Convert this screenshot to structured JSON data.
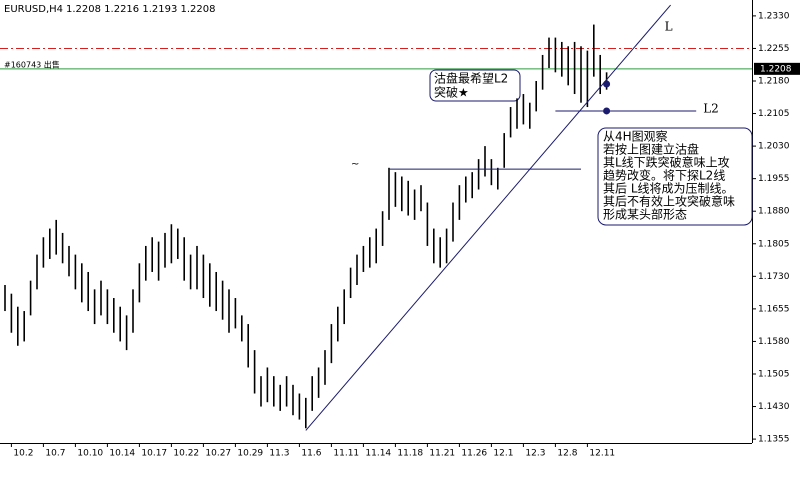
{
  "chart_data": {
    "type": "high_low",
    "header": {
      "symbol": "EURUSD,H4",
      "ohlc": "1.2208 1.2216 1.2193 1.2208"
    },
    "categories": [
      null,
      "10.2",
      null,
      null,
      null,
      null,
      "10.7",
      null,
      null,
      null,
      null,
      "10.10",
      null,
      null,
      null,
      null,
      "10.14",
      null,
      null,
      null,
      null,
      "10.17",
      null,
      null,
      null,
      null,
      "10.22",
      null,
      null,
      null,
      null,
      "10.27",
      null,
      null,
      null,
      null,
      "10.29",
      null,
      null,
      null,
      null,
      "11.3",
      null,
      null,
      null,
      null,
      "11.6",
      null,
      null,
      null,
      null,
      "11.11",
      null,
      null,
      null,
      null,
      "11.14",
      null,
      null,
      null,
      null,
      "11.18",
      null,
      null,
      null,
      null,
      "11.21",
      null,
      null,
      null,
      null,
      "11.26",
      null,
      null,
      null,
      null,
      "12.1",
      null,
      null,
      null,
      null,
      "12.3",
      null,
      null,
      null,
      null,
      "12.8",
      null,
      null,
      null,
      null,
      "12.11",
      null,
      null,
      null
    ],
    "high": [
      1.171,
      1.169,
      1.166,
      1.165,
      1.172,
      1.178,
      1.182,
      1.184,
      1.186,
      1.183,
      1.18,
      1.178,
      1.176,
      1.174,
      1.17,
      1.172,
      1.17,
      1.168,
      1.166,
      1.164,
      1.17,
      1.176,
      1.18,
      1.182,
      1.181,
      1.183,
      1.185,
      1.184,
      1.182,
      1.178,
      1.18,
      1.178,
      1.176,
      1.174,
      1.172,
      1.17,
      1.168,
      1.164,
      1.162,
      1.156,
      1.15,
      1.152,
      1.15,
      1.148,
      1.15,
      1.148,
      1.146,
      1.145,
      1.15,
      1.152,
      1.156,
      1.162,
      1.166,
      1.17,
      1.175,
      1.178,
      1.18,
      1.182,
      1.184,
      1.188,
      1.198,
      1.197,
      1.196,
      1.195,
      1.193,
      1.194,
      1.19,
      1.184,
      1.182,
      1.184,
      1.19,
      1.194,
      1.196,
      1.197,
      1.2,
      1.203,
      1.2,
      1.198,
      1.206,
      1.212,
      1.214,
      1.215,
      1.213,
      1.218,
      1.224,
      1.228,
      1.228,
      1.227,
      1.226,
      1.227,
      1.226,
      1.225,
      1.231,
      1.224,
      1.22
    ],
    "low": [
      1.165,
      1.16,
      1.157,
      1.158,
      1.164,
      1.17,
      1.175,
      1.177,
      1.178,
      1.176,
      1.173,
      1.17,
      1.167,
      1.165,
      1.162,
      1.164,
      1.162,
      1.16,
      1.158,
      1.156,
      1.16,
      1.167,
      1.172,
      1.174,
      1.172,
      1.175,
      1.176,
      1.177,
      1.172,
      1.17,
      1.17,
      1.168,
      1.166,
      1.165,
      1.163,
      1.16,
      1.161,
      1.158,
      1.152,
      1.146,
      1.143,
      1.144,
      1.143,
      1.142,
      1.143,
      1.141,
      1.14,
      1.138,
      1.142,
      1.145,
      1.148,
      1.153,
      1.158,
      1.162,
      1.168,
      1.171,
      1.174,
      1.175,
      1.176,
      1.18,
      1.186,
      1.189,
      1.188,
      1.187,
      1.186,
      1.188,
      1.18,
      1.176,
      1.175,
      1.176,
      1.181,
      1.186,
      1.19,
      1.191,
      1.193,
      1.196,
      1.194,
      1.193,
      1.198,
      1.205,
      1.207,
      1.208,
      1.207,
      1.211,
      1.216,
      1.221,
      1.22,
      1.219,
      1.217,
      1.215,
      1.213,
      1.212,
      1.219,
      1.215,
      1.216
    ],
    "color": "#000000",
    "ylim": [
      1.1346,
      1.2362
    ],
    "yticks": [
      {
        "value": 1.1355,
        "label": "1.1355"
      },
      {
        "value": 1.143,
        "label": "1.1430"
      },
      {
        "value": 1.1505,
        "label": "1.1505"
      },
      {
        "value": 1.158,
        "label": "1.1580"
      },
      {
        "value": 1.1655,
        "label": "1.1655"
      },
      {
        "value": 1.173,
        "label": "1.1730"
      },
      {
        "value": 1.1805,
        "label": "1.1805"
      },
      {
        "value": 1.188,
        "label": "1.1880"
      },
      {
        "value": 1.1955,
        "label": "1.1955"
      },
      {
        "value": 1.203,
        "label": "1.2030"
      },
      {
        "value": 1.2105,
        "label": "1.2105"
      },
      {
        "value": 1.218,
        "label": "1.2180"
      },
      {
        "value": 1.2255,
        "label": "1.2255"
      },
      {
        "value": 1.233,
        "label": "1.2330"
      }
    ],
    "stop_level": {
      "price": 1.2255,
      "color": "#d62020"
    },
    "order": {
      "label": "#160743 出售",
      "price": 1.2208,
      "price_label": "1.2208",
      "color": "#2e9e3e"
    },
    "trend_line": {
      "label": "L",
      "from": {
        "bar": 47,
        "price": 1.1375
      },
      "to": {
        "bar": 104,
        "price": 1.2355
      }
    },
    "l2_line": {
      "label": "L2",
      "price": 1.2111,
      "from_bar": 86,
      "to_bar": 108
    },
    "resistance_line": {
      "price": 1.1977,
      "from_bar": 60,
      "to_bar": 90,
      "marker": "~"
    },
    "dots": [
      {
        "bar": 94,
        "price": 1.2173
      },
      {
        "bar": 94,
        "price": 1.2111
      }
    ],
    "note_small": [
      "沽盘最希望L2",
      "突破★"
    ],
    "note_large": [
      "从4H图观察",
      "若按上图建立沽盘",
      "其L线下跌突破意味上攻",
      "趋势改变。将下探L2线",
      "其后 L线将成为压制线。",
      "其后不有效上攻突破意味",
      "形成某头部形态"
    ]
  }
}
